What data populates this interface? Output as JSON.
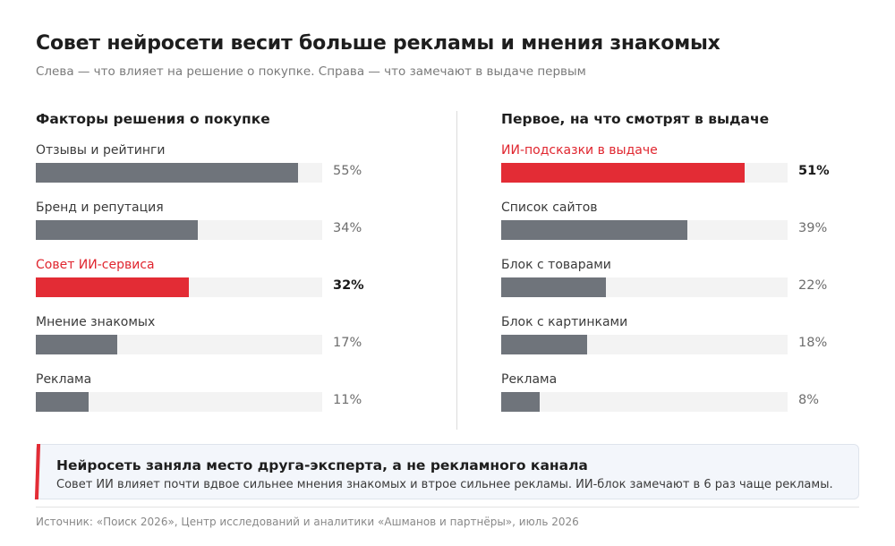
{
  "header": {
    "title": "Совет нейросети весит больше рекламы и мнения знакомых",
    "subtitle": "Слева — что влияет на решение о покупке. Справа — что замечают в выдаче первым"
  },
  "colors": {
    "highlight": "#e32c35",
    "bar": "#6f747b",
    "track": "#f3f3f3"
  },
  "chart_data": [
    {
      "type": "bar",
      "orientation": "horizontal",
      "title": "Факторы решения о покупке",
      "unit": "%",
      "xlim": [
        0,
        60
      ],
      "grid": false,
      "bars": [
        {
          "label": "Отзывы и рейтинги",
          "value": 55,
          "display": "55%",
          "highlight": false
        },
        {
          "label": "Бренд и репутация",
          "value": 34,
          "display": "34%",
          "highlight": false
        },
        {
          "label": "Совет ИИ-сервиса",
          "value": 32,
          "display": "32%",
          "highlight": true
        },
        {
          "label": "Мнение знакомых",
          "value": 17,
          "display": "17%",
          "highlight": false
        },
        {
          "label": "Реклама",
          "value": 11,
          "display": "11%",
          "highlight": false
        }
      ]
    },
    {
      "type": "bar",
      "orientation": "horizontal",
      "title": "Первое, на что смотрят в выдаче",
      "unit": "%",
      "xlim": [
        0,
        60
      ],
      "grid": false,
      "bars": [
        {
          "label": "ИИ-подсказки в выдаче",
          "value": 51,
          "display": "51%",
          "highlight": true
        },
        {
          "label": "Список сайтов",
          "value": 39,
          "display": "39%",
          "highlight": false
        },
        {
          "label": "Блок с товарами",
          "value": 22,
          "display": "22%",
          "highlight": false
        },
        {
          "label": "Блок с картинками",
          "value": 18,
          "display": "18%",
          "highlight": false
        },
        {
          "label": "Реклама",
          "value": 8,
          "display": "8%",
          "highlight": false
        }
      ]
    }
  ],
  "callout": {
    "title": "Нейросеть заняла место друга-эксперта, а не рекламного канала",
    "text": "Совет ИИ влияет почти вдвое сильнее мнения знакомых и втрое сильнее рекламы. ИИ-блок замечают в 6 раз чаще рекламы."
  },
  "source": "Источник: «Поиск 2026», Центр исследований и аналитики «Ашманов и партнёры», июль 2026"
}
